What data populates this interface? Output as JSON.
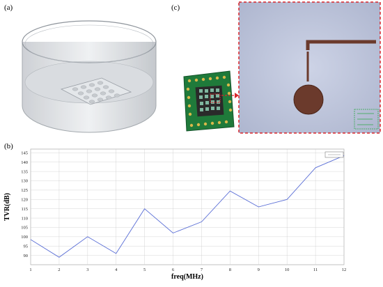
{
  "panels": {
    "a": "(a)",
    "b": "(b)",
    "c": "(c)"
  },
  "colors": {
    "series": "#5b6fd6",
    "zoom_border": "#d9262c",
    "pcb": "#1f7a3a",
    "trace": "#6b3a2c",
    "grid": "#cccccc"
  },
  "chart_data": {
    "type": "line",
    "xlabel": "freq(MHz)",
    "ylabel": "TVR(dB)",
    "xlim": [
      1,
      12
    ],
    "ylim": [
      85,
      147
    ],
    "x_ticks": [
      1,
      2,
      3,
      4,
      5,
      6,
      7,
      8,
      9,
      10,
      11,
      12
    ],
    "y_ticks": [
      90,
      95,
      100,
      105,
      110,
      115,
      120,
      125,
      130,
      135,
      140,
      145
    ],
    "grid": true,
    "legend": "top-right",
    "series": [
      {
        "x": [
          1,
          2,
          3,
          4,
          5,
          6,
          7,
          8,
          9,
          10,
          11,
          12
        ],
        "y": [
          98.5,
          89,
          100,
          91,
          115,
          102,
          108,
          124.5,
          116,
          120,
          137,
          143.5
        ]
      }
    ]
  }
}
